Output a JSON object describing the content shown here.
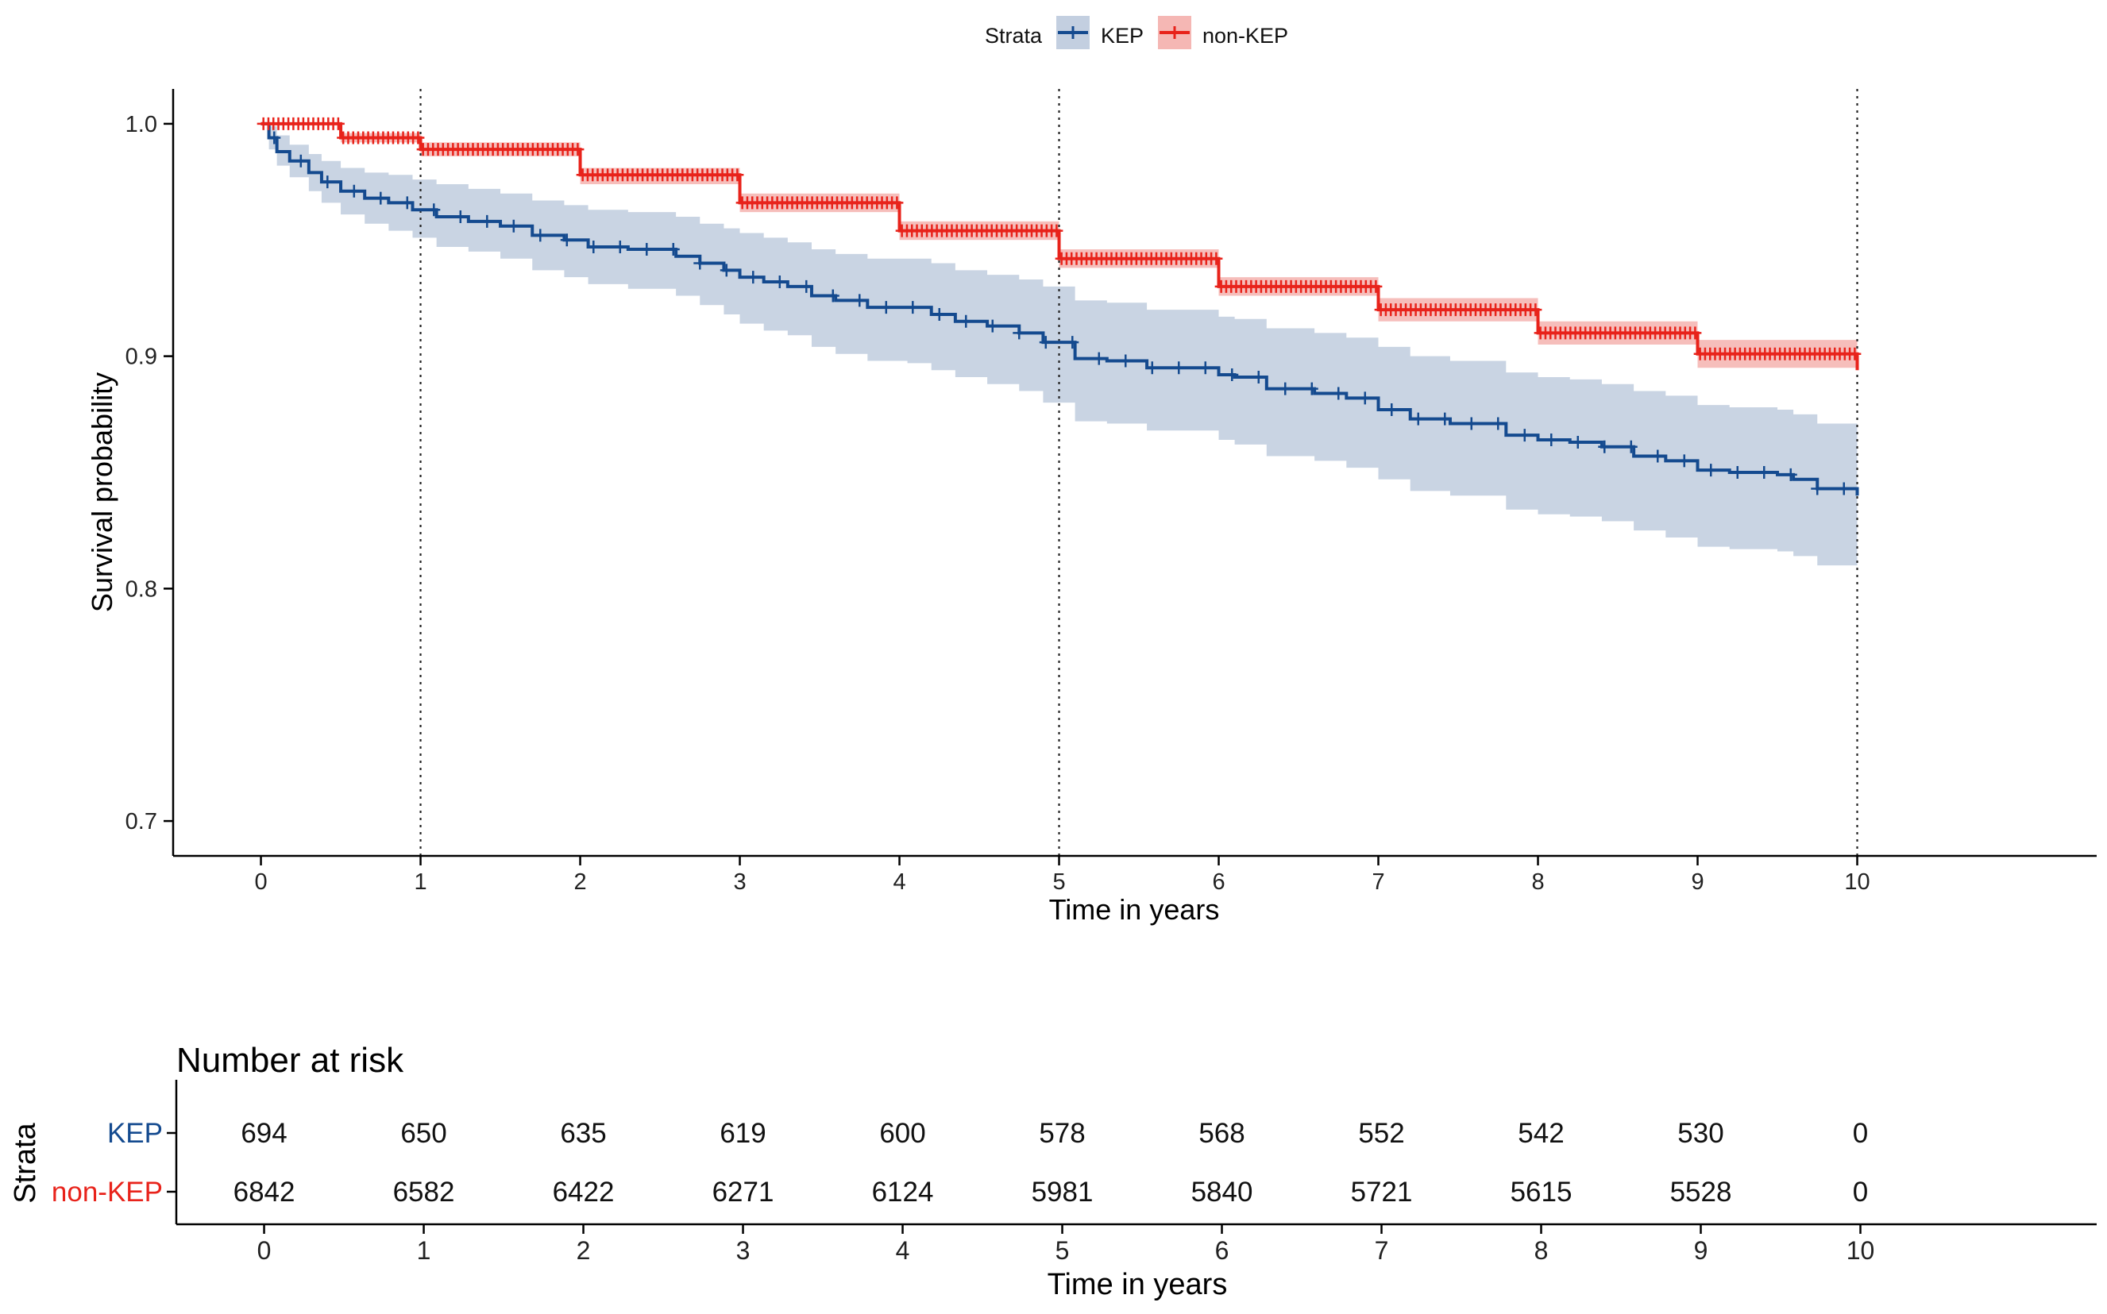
{
  "legend": {
    "title": "Strata",
    "entries": [
      {
        "name": "KEP",
        "color": "#144a8f",
        "fill": "#c3cfe0"
      },
      {
        "name": "non-KEP",
        "color": "#e8231b",
        "fill": "#f5b7b4"
      }
    ]
  },
  "chart_data": [
    {
      "type": "line",
      "subtype": "kaplan-meier",
      "xlabel": "Time in years",
      "ylabel": "Survival probability",
      "xlim": [
        -0.55,
        11.5
      ],
      "ylim": [
        0.685,
        1.015
      ],
      "xticks": [
        0,
        1,
        2,
        3,
        4,
        5,
        6,
        7,
        8,
        9,
        10
      ],
      "yticks": [
        0.7,
        0.8,
        0.9,
        1.0
      ],
      "ytick_labels": [
        "0.7",
        "0.8",
        "0.9",
        "1.0"
      ],
      "vlines": [
        1,
        5,
        10
      ],
      "grid": false,
      "legend_position": "top",
      "series": [
        {
          "name": "KEP",
          "color": "#144a8f",
          "fill": "#c3cfe0",
          "x": [
            0,
            0.05,
            0.1,
            0.18,
            0.3,
            0.38,
            0.5,
            0.65,
            0.8,
            0.95,
            1.1,
            1.3,
            1.5,
            1.7,
            1.9,
            2.05,
            2.3,
            2.6,
            2.75,
            2.9,
            3.0,
            3.15,
            3.3,
            3.45,
            3.6,
            3.8,
            4.05,
            4.2,
            4.35,
            4.55,
            4.75,
            4.9,
            5.1,
            5.3,
            5.55,
            5.8,
            6.0,
            6.1,
            6.3,
            6.6,
            6.8,
            7.0,
            7.2,
            7.45,
            7.6,
            7.8,
            8.0,
            8.2,
            8.4,
            8.6,
            8.8,
            9.0,
            9.2,
            9.5,
            9.6,
            9.75,
            10.0
          ],
          "y": [
            1.0,
            0.994,
            0.988,
            0.984,
            0.979,
            0.975,
            0.971,
            0.968,
            0.966,
            0.963,
            0.96,
            0.958,
            0.956,
            0.952,
            0.95,
            0.947,
            0.946,
            0.943,
            0.94,
            0.937,
            0.934,
            0.932,
            0.93,
            0.926,
            0.924,
            0.921,
            0.921,
            0.918,
            0.915,
            0.913,
            0.91,
            0.906,
            0.899,
            0.898,
            0.895,
            0.895,
            0.892,
            0.891,
            0.886,
            0.884,
            0.882,
            0.877,
            0.873,
            0.871,
            0.871,
            0.866,
            0.864,
            0.863,
            0.861,
            0.857,
            0.855,
            0.851,
            0.85,
            0.849,
            0.847,
            0.843,
            0.84
          ],
          "lower": [
            1.0,
            0.989,
            0.982,
            0.977,
            0.971,
            0.966,
            0.961,
            0.957,
            0.954,
            0.951,
            0.947,
            0.945,
            0.942,
            0.937,
            0.934,
            0.931,
            0.929,
            0.926,
            0.922,
            0.918,
            0.914,
            0.911,
            0.909,
            0.904,
            0.901,
            0.898,
            0.897,
            0.894,
            0.891,
            0.888,
            0.885,
            0.88,
            0.872,
            0.871,
            0.868,
            0.868,
            0.864,
            0.862,
            0.857,
            0.855,
            0.852,
            0.847,
            0.842,
            0.84,
            0.84,
            0.834,
            0.832,
            0.831,
            0.829,
            0.825,
            0.822,
            0.818,
            0.817,
            0.816,
            0.814,
            0.81,
            0.807
          ],
          "upper": [
            1.0,
            0.999,
            0.995,
            0.991,
            0.987,
            0.984,
            0.981,
            0.979,
            0.978,
            0.976,
            0.974,
            0.972,
            0.97,
            0.967,
            0.965,
            0.963,
            0.962,
            0.96,
            0.957,
            0.955,
            0.953,
            0.951,
            0.949,
            0.946,
            0.944,
            0.942,
            0.942,
            0.94,
            0.937,
            0.935,
            0.933,
            0.93,
            0.924,
            0.923,
            0.92,
            0.92,
            0.917,
            0.916,
            0.912,
            0.91,
            0.908,
            0.904,
            0.9,
            0.898,
            0.898,
            0.893,
            0.891,
            0.89,
            0.888,
            0.885,
            0.883,
            0.879,
            0.878,
            0.877,
            0.875,
            0.871,
            0.868
          ]
        },
        {
          "name": "non-KEP",
          "color": "#e8231b",
          "fill": "#f5b7b4",
          "x": [
            0,
            0.5,
            1,
            2,
            3,
            4,
            5,
            6,
            7,
            8,
            9,
            10
          ],
          "y": [
            1.0,
            0.994,
            0.989,
            0.978,
            0.966,
            0.954,
            0.942,
            0.93,
            0.92,
            0.91,
            0.901,
            0.894
          ],
          "lower": [
            1.0,
            0.992,
            0.986,
            0.974,
            0.962,
            0.95,
            0.938,
            0.926,
            0.915,
            0.905,
            0.895,
            0.888
          ],
          "upper": [
            1.0,
            0.996,
            0.992,
            0.981,
            0.97,
            0.958,
            0.946,
            0.934,
            0.925,
            0.915,
            0.907,
            0.9
          ]
        }
      ]
    },
    {
      "type": "table",
      "title": "Number at risk",
      "ylabel": "Strata",
      "xlabel": "Time in years",
      "xticks": [
        0,
        1,
        2,
        3,
        4,
        5,
        6,
        7,
        8,
        9,
        10
      ],
      "rows": [
        {
          "name": "KEP",
          "color": "#144a8f",
          "values": [
            "694",
            "650",
            "635",
            "619",
            "600",
            "578",
            "568",
            "552",
            "542",
            "530",
            "0"
          ]
        },
        {
          "name": "non-KEP",
          "color": "#e8231b",
          "values": [
            "6842",
            "6582",
            "6422",
            "6271",
            "6124",
            "5981",
            "5840",
            "5721",
            "5615",
            "5528",
            "0"
          ]
        }
      ]
    }
  ]
}
